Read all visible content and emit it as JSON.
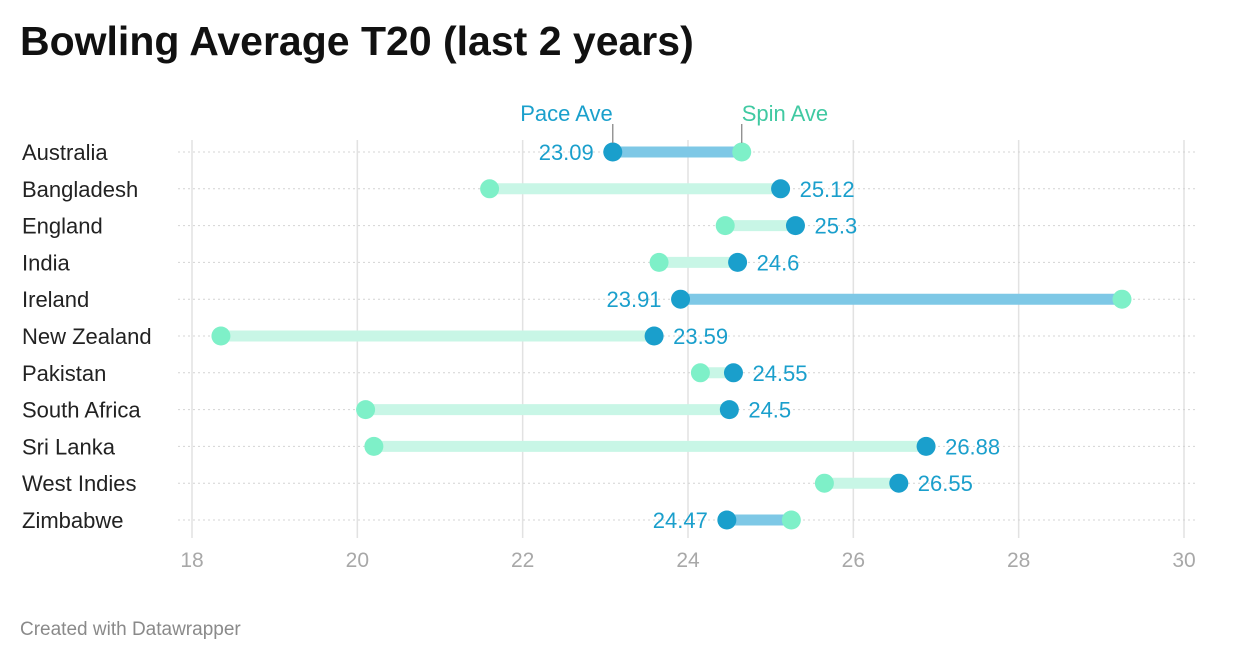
{
  "title": "Bowling Average T20 (last 2 years)",
  "footer": "Created with Datawrapper",
  "chart_data": {
    "type": "range-dot",
    "title": "Bowling Average T20 (last 2 years)",
    "xlim": [
      18,
      30
    ],
    "x_ticks": [
      18,
      20,
      22,
      24,
      26,
      28,
      30
    ],
    "grid": true,
    "legend": [
      {
        "name": "Pace Ave",
        "color": "#1aa0cc"
      },
      {
        "name": "Spin Ave",
        "color": "#40c9a2"
      }
    ],
    "colors": {
      "pace_dot": "#1a9fcc",
      "spin_dot": "#7ef0c8",
      "bar_pace_worse": "#7ec8e6",
      "bar_spin_worse": "#c8f6e6",
      "value_label": "#1a9fcc"
    },
    "categories": [
      "Australia",
      "Bangladesh",
      "England",
      "India",
      "Ireland",
      "New Zealand",
      "Pakistan",
      "South Africa",
      "Sri Lanka",
      "West Indies",
      "Zimbabwe"
    ],
    "series": [
      {
        "name": "Pace Ave",
        "values": [
          23.09,
          25.12,
          25.3,
          24.6,
          23.91,
          23.59,
          24.55,
          24.5,
          26.88,
          26.55,
          24.47
        ]
      },
      {
        "name": "Spin Ave",
        "values": [
          24.65,
          21.6,
          24.45,
          23.65,
          29.25,
          18.35,
          24.15,
          20.1,
          20.2,
          25.65,
          25.25
        ]
      }
    ]
  }
}
